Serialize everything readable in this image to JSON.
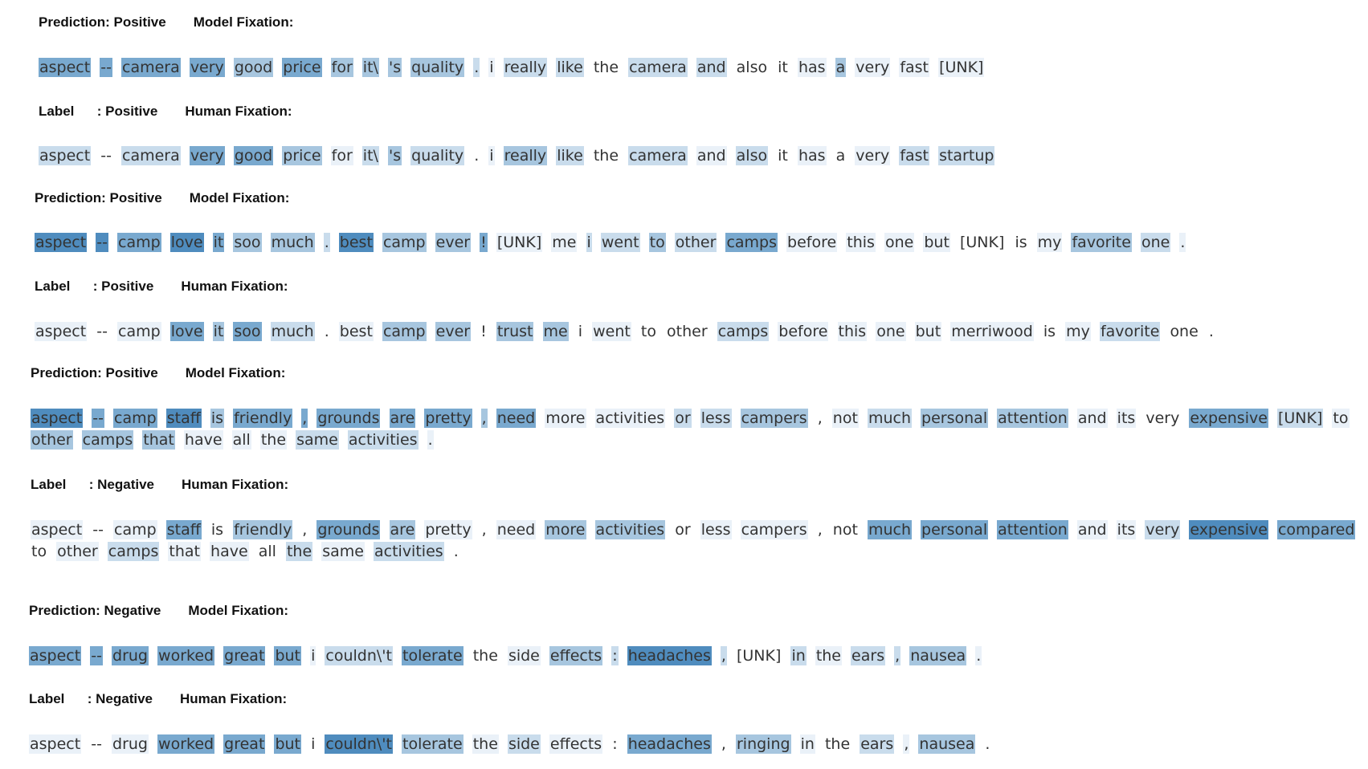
{
  "examples": [
    {
      "model": {
        "heading": "Prediction: Positive",
        "fixation_title": "Model Fixation:",
        "tokens": [
          "aspect",
          "--",
          "camera",
          "very",
          "good",
          "price",
          "for",
          "it\\",
          "'s",
          "quality",
          ".",
          "i",
          "really",
          "like",
          "the",
          "camera",
          "and",
          "also",
          "it",
          "has",
          "a",
          "very",
          "fast",
          "[UNK]"
        ],
        "weights": [
          4,
          4,
          4,
          4,
          3,
          4,
          3,
          3,
          3,
          3,
          2,
          1,
          2,
          2,
          0,
          2,
          2,
          0,
          0,
          1,
          3,
          1,
          1,
          1
        ]
      },
      "human": {
        "heading": "Label      : Positive",
        "fixation_title": "Human Fixation:",
        "tokens": [
          "aspect",
          "--",
          "camera",
          "very",
          "good",
          "price",
          "for",
          "it\\",
          "'s",
          "quality",
          ".",
          "i",
          "really",
          "like",
          "the",
          "camera",
          "and",
          "also",
          "it",
          "has",
          "a",
          "very",
          "fast",
          "startup"
        ],
        "weights": [
          2,
          0,
          2,
          4,
          4,
          3,
          1,
          2,
          3,
          2,
          0,
          1,
          3,
          2,
          0,
          2,
          1,
          2,
          0,
          1,
          0,
          1,
          2,
          2
        ]
      }
    },
    {
      "model": {
        "heading": "Prediction: Positive",
        "fixation_title": "Model Fixation:",
        "tokens": [
          "aspect",
          "--",
          "camp",
          "love",
          "it",
          "soo",
          "much",
          ".",
          "best",
          "camp",
          "ever",
          "!",
          "[UNK]",
          "me",
          "i",
          "went",
          "to",
          "other",
          "camps",
          "before",
          "this",
          "one",
          "but",
          "[UNK]",
          "is",
          "my",
          "favorite",
          "one",
          "."
        ],
        "weights": [
          5,
          5,
          4,
          5,
          4,
          3,
          3,
          2,
          5,
          3,
          3,
          4,
          1,
          1,
          2,
          2,
          3,
          2,
          4,
          1,
          1,
          1,
          1,
          0,
          0,
          1,
          3,
          2,
          1
        ]
      },
      "human": {
        "heading": "Label      : Positive",
        "fixation_title": "Human Fixation:",
        "tokens": [
          "aspect",
          "--",
          "camp",
          "love",
          "it",
          "soo",
          "much",
          ".",
          "best",
          "camp",
          "ever",
          "!",
          "trust",
          "me",
          "i",
          "went",
          "to",
          "other",
          "camps",
          "before",
          "this",
          "one",
          "but",
          "merriwood",
          "is",
          "my",
          "favorite",
          "one",
          "."
        ],
        "weights": [
          1,
          0,
          1,
          4,
          3,
          4,
          2,
          0,
          1,
          3,
          3,
          0,
          3,
          3,
          0,
          1,
          0,
          0,
          2,
          1,
          1,
          1,
          1,
          1,
          0,
          1,
          2,
          0,
          0
        ]
      }
    },
    {
      "model": {
        "heading": "Prediction: Positive",
        "fixation_title": "Model Fixation:",
        "tokens": [
          "aspect",
          "--",
          "camp",
          "staff",
          "is",
          "friendly",
          ",",
          "grounds",
          "are",
          "pretty",
          ",",
          "need",
          "more",
          "activities",
          "or",
          "less",
          "campers",
          ",",
          "not",
          "much",
          "personal",
          "attention",
          "and",
          "its",
          "very",
          "expensive",
          "[UNK]",
          "to",
          "other",
          "camps",
          "that",
          "have",
          "all",
          "the",
          "same",
          "activities",
          "."
        ],
        "weights": [
          5,
          4,
          4,
          5,
          3,
          4,
          4,
          4,
          4,
          4,
          3,
          4,
          1,
          1,
          2,
          2,
          3,
          0,
          1,
          2,
          3,
          3,
          1,
          1,
          0,
          4,
          2,
          1,
          3,
          3,
          3,
          1,
          1,
          1,
          2,
          2,
          1
        ]
      },
      "human": {
        "heading": "Label      : Negative",
        "fixation_title": "Human Fixation:",
        "tokens": [
          "aspect",
          "--",
          "camp",
          "staff",
          "is",
          "friendly",
          ",",
          "grounds",
          "are",
          "pretty",
          ",",
          "need",
          "more",
          "activities",
          "or",
          "less",
          "campers",
          ",",
          "not",
          "much",
          "personal",
          "attention",
          "and",
          "its",
          "very",
          "expensive",
          "compared",
          "to",
          "other",
          "camps",
          "that",
          "have",
          "all",
          "the",
          "same",
          "activities",
          "."
        ],
        "weights": [
          1,
          0,
          1,
          4,
          0,
          3,
          0,
          4,
          3,
          1,
          0,
          1,
          3,
          3,
          0,
          1,
          1,
          0,
          0,
          4,
          4,
          4,
          1,
          1,
          2,
          5,
          4,
          0,
          1,
          2,
          1,
          1,
          0,
          2,
          1,
          2,
          0
        ]
      }
    },
    {
      "model": {
        "heading": "Prediction: Negative",
        "fixation_title": "Model Fixation:",
        "tokens": [
          "aspect",
          "--",
          "drug",
          "worked",
          "great",
          "but",
          "i",
          "couldn\\'t",
          "tolerate",
          "the",
          "side",
          "effects",
          ":",
          "headaches",
          ",",
          "[UNK]",
          "in",
          "the",
          "ears",
          ",",
          "nausea",
          "."
        ],
        "weights": [
          4,
          4,
          4,
          4,
          4,
          4,
          1,
          2,
          4,
          0,
          1,
          3,
          2,
          5,
          2,
          0,
          2,
          1,
          2,
          2,
          3,
          1
        ]
      },
      "human": {
        "heading": "Label      : Negative",
        "fixation_title": "Human Fixation:",
        "tokens": [
          "aspect",
          "--",
          "drug",
          "worked",
          "great",
          "but",
          "i",
          "couldn\\'t",
          "tolerate",
          "the",
          "side",
          "effects",
          ":",
          "headaches",
          ",",
          "ringing",
          "in",
          "the",
          "ears",
          ",",
          "nausea",
          "."
        ],
        "weights": [
          1,
          0,
          1,
          4,
          4,
          4,
          0,
          5,
          3,
          1,
          2,
          1,
          0,
          4,
          0,
          3,
          1,
          0,
          2,
          1,
          3,
          0
        ]
      }
    }
  ]
}
